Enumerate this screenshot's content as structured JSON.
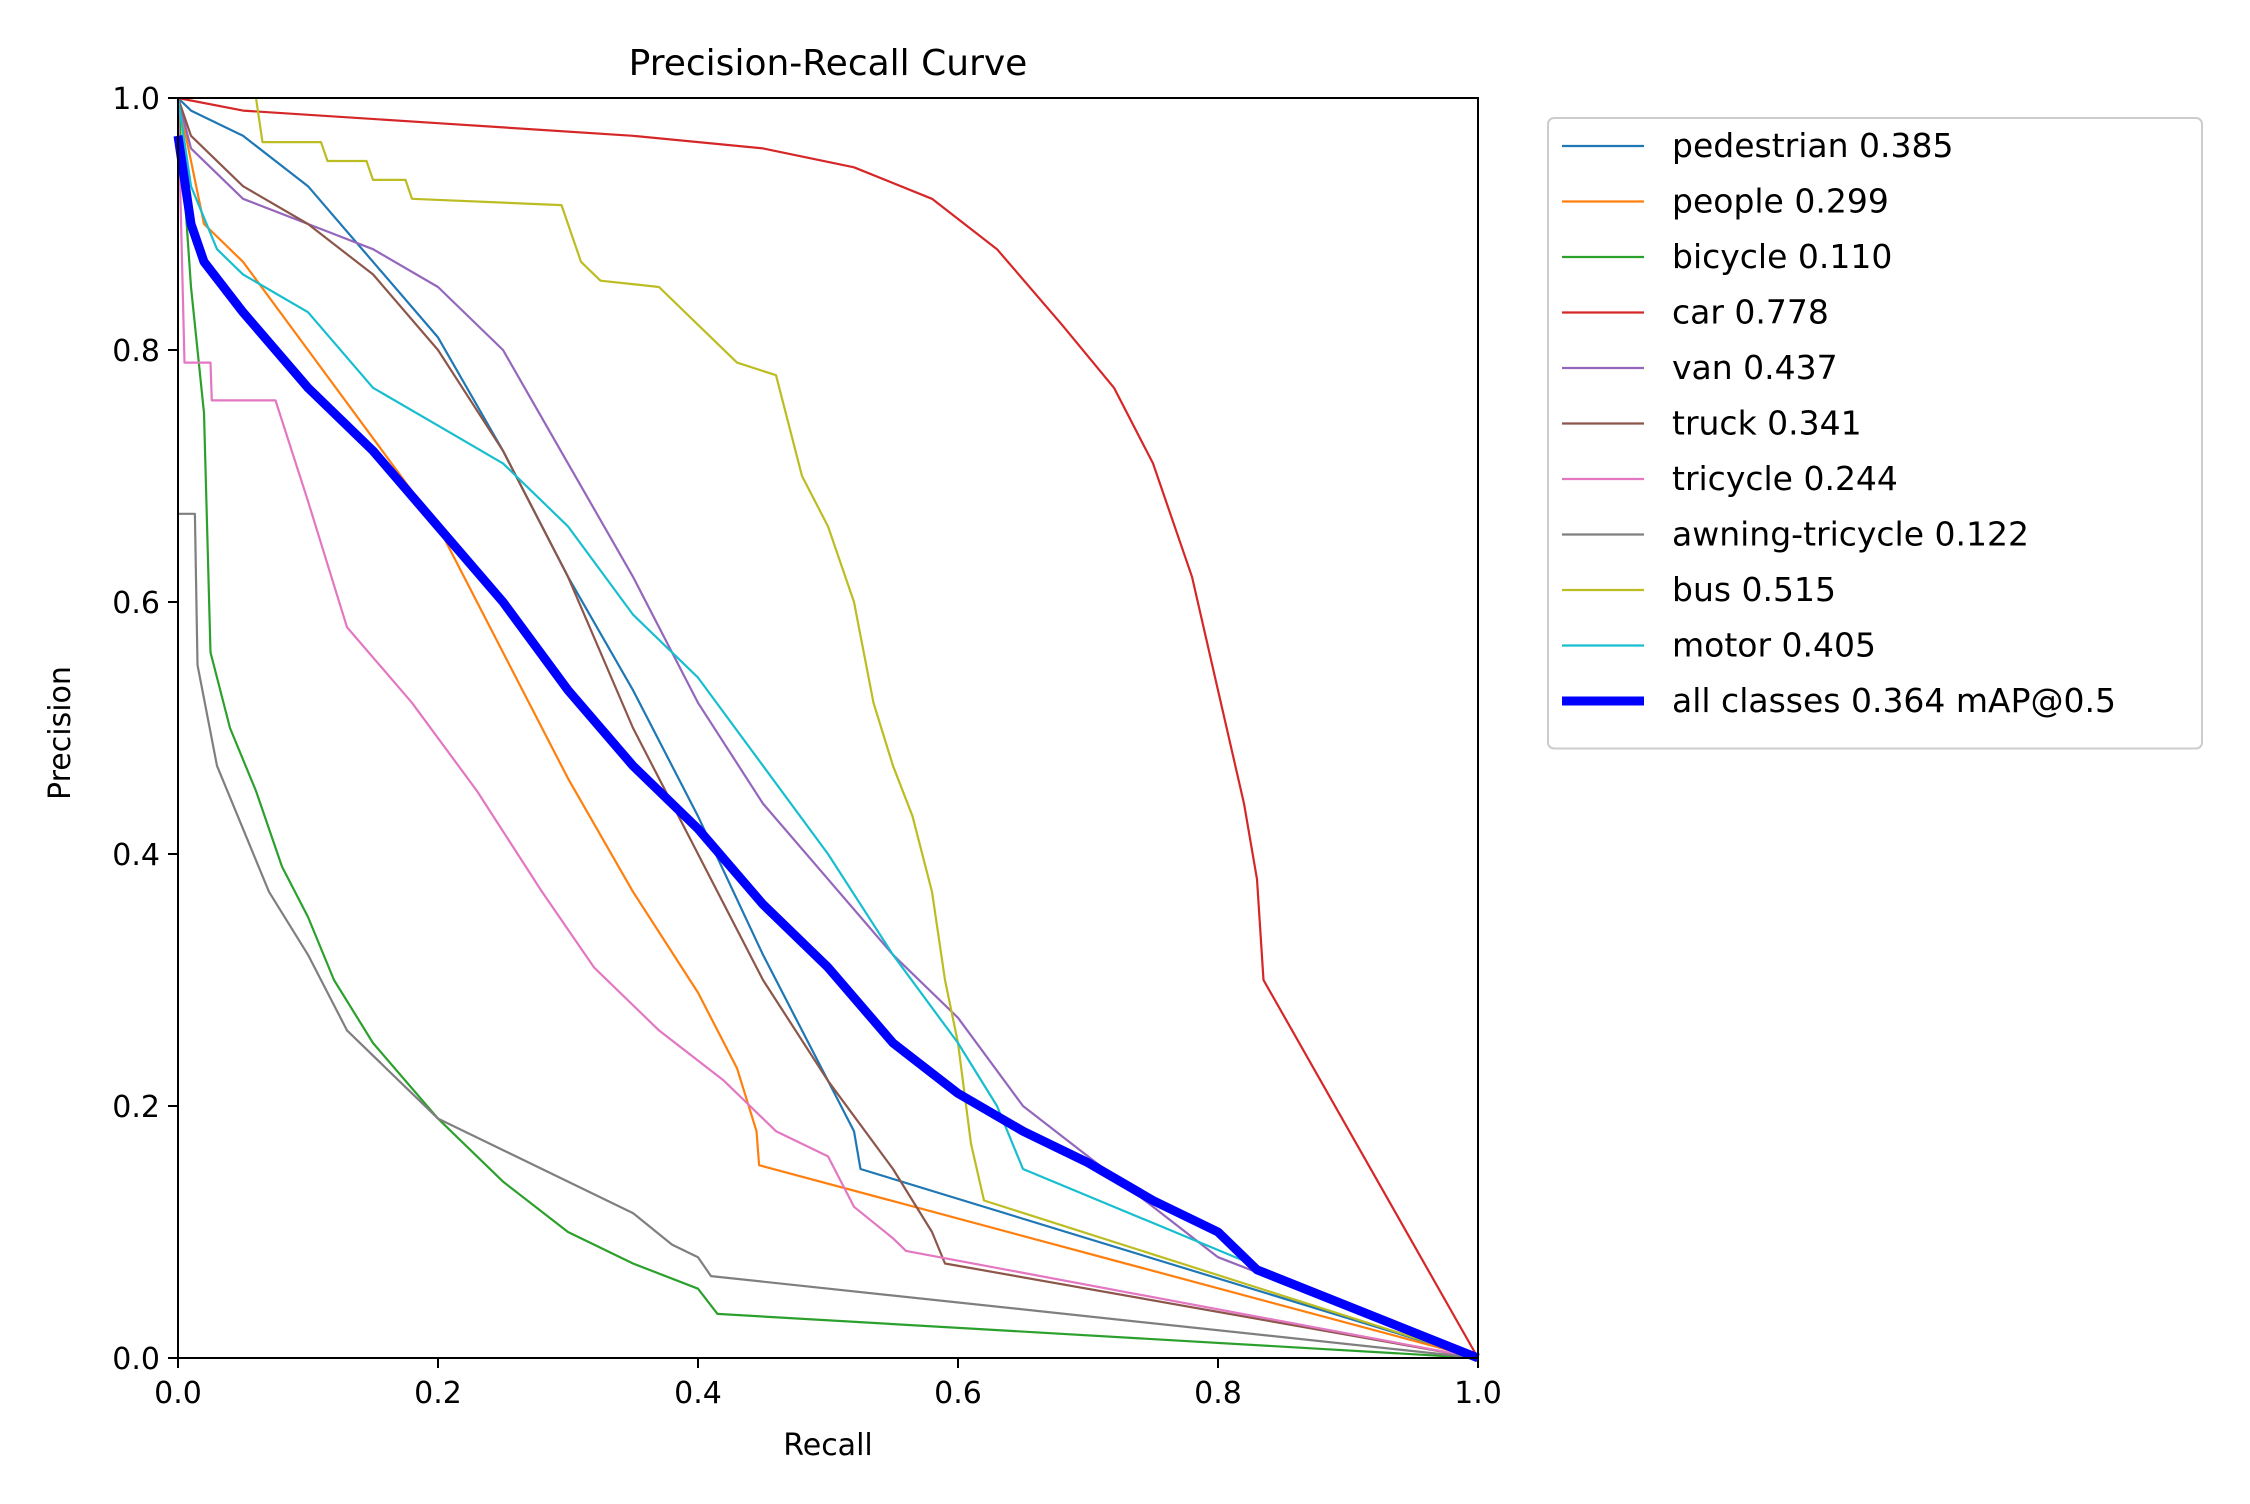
{
  "chart_data": {
    "type": "line",
    "title": "Precision-Recall Curve",
    "xlabel": "Recall",
    "ylabel": "Precision",
    "xlim": [
      0,
      1
    ],
    "ylim": [
      0,
      1
    ],
    "xticks": [
      "0.0",
      "0.2",
      "0.4",
      "0.6",
      "0.8",
      "1.0"
    ],
    "yticks": [
      "0.0",
      "0.2",
      "0.4",
      "0.6",
      "0.8",
      "1.0"
    ],
    "grid": false,
    "legend_position": "outside-right",
    "series": [
      {
        "name": "pedestrian 0.385",
        "color": "#1f77b4",
        "points": [
          [
            0,
            1.0
          ],
          [
            0.01,
            0.99
          ],
          [
            0.05,
            0.97
          ],
          [
            0.1,
            0.93
          ],
          [
            0.15,
            0.87
          ],
          [
            0.2,
            0.81
          ],
          [
            0.25,
            0.72
          ],
          [
            0.3,
            0.62
          ],
          [
            0.35,
            0.53
          ],
          [
            0.4,
            0.43
          ],
          [
            0.45,
            0.32
          ],
          [
            0.5,
            0.22
          ],
          [
            0.52,
            0.18
          ],
          [
            0.525,
            0.15
          ],
          [
            1.0,
            0.0
          ]
        ]
      },
      {
        "name": "people 0.299",
        "color": "#ff7f0e",
        "points": [
          [
            0,
            1.0
          ],
          [
            0.02,
            0.9
          ],
          [
            0.05,
            0.87
          ],
          [
            0.1,
            0.8
          ],
          [
            0.15,
            0.73
          ],
          [
            0.2,
            0.66
          ],
          [
            0.25,
            0.56
          ],
          [
            0.3,
            0.46
          ],
          [
            0.35,
            0.37
          ],
          [
            0.4,
            0.29
          ],
          [
            0.43,
            0.23
          ],
          [
            0.445,
            0.18
          ],
          [
            0.447,
            0.153
          ],
          [
            1.0,
            0.0
          ]
        ]
      },
      {
        "name": "bicycle 0.110",
        "color": "#2ca02c",
        "points": [
          [
            0,
            1.0
          ],
          [
            0.01,
            0.85
          ],
          [
            0.02,
            0.75
          ],
          [
            0.025,
            0.56
          ],
          [
            0.04,
            0.5
          ],
          [
            0.06,
            0.45
          ],
          [
            0.08,
            0.39
          ],
          [
            0.1,
            0.35
          ],
          [
            0.12,
            0.3
          ],
          [
            0.15,
            0.25
          ],
          [
            0.2,
            0.19
          ],
          [
            0.25,
            0.14
          ],
          [
            0.3,
            0.1
          ],
          [
            0.35,
            0.075
          ],
          [
            0.4,
            0.055
          ],
          [
            0.415,
            0.035
          ],
          [
            1.0,
            0.0
          ]
        ]
      },
      {
        "name": "car 0.778",
        "color": "#d62728",
        "points": [
          [
            0,
            1.0
          ],
          [
            0.05,
            0.99
          ],
          [
            0.2,
            0.98
          ],
          [
            0.35,
            0.97
          ],
          [
            0.45,
            0.96
          ],
          [
            0.52,
            0.945
          ],
          [
            0.58,
            0.92
          ],
          [
            0.63,
            0.88
          ],
          [
            0.68,
            0.82
          ],
          [
            0.72,
            0.77
          ],
          [
            0.75,
            0.71
          ],
          [
            0.78,
            0.62
          ],
          [
            0.8,
            0.53
          ],
          [
            0.82,
            0.44
          ],
          [
            0.83,
            0.38
          ],
          [
            0.835,
            0.3
          ],
          [
            1.0,
            0.0
          ]
        ]
      },
      {
        "name": "van 0.437",
        "color": "#9467bd",
        "points": [
          [
            0,
            1.0
          ],
          [
            0.01,
            0.96
          ],
          [
            0.05,
            0.92
          ],
          [
            0.1,
            0.9
          ],
          [
            0.15,
            0.88
          ],
          [
            0.2,
            0.85
          ],
          [
            0.25,
            0.8
          ],
          [
            0.3,
            0.71
          ],
          [
            0.35,
            0.62
          ],
          [
            0.4,
            0.52
          ],
          [
            0.45,
            0.44
          ],
          [
            0.5,
            0.38
          ],
          [
            0.55,
            0.32
          ],
          [
            0.6,
            0.27
          ],
          [
            0.65,
            0.2
          ],
          [
            0.7,
            0.16
          ],
          [
            0.75,
            0.12
          ],
          [
            0.8,
            0.08
          ],
          [
            1.0,
            0.0
          ]
        ]
      },
      {
        "name": "truck 0.341",
        "color": "#8c564b",
        "points": [
          [
            0,
            1.0
          ],
          [
            0.01,
            0.97
          ],
          [
            0.05,
            0.93
          ],
          [
            0.1,
            0.9
          ],
          [
            0.15,
            0.86
          ],
          [
            0.2,
            0.8
          ],
          [
            0.25,
            0.72
          ],
          [
            0.3,
            0.62
          ],
          [
            0.35,
            0.5
          ],
          [
            0.4,
            0.4
          ],
          [
            0.45,
            0.3
          ],
          [
            0.5,
            0.22
          ],
          [
            0.55,
            0.15
          ],
          [
            0.58,
            0.1
          ],
          [
            0.59,
            0.075
          ],
          [
            1.0,
            0.0
          ]
        ]
      },
      {
        "name": "tricycle 0.244",
        "color": "#e377c2",
        "points": [
          [
            0,
            1.0
          ],
          [
            0.005,
            0.79
          ],
          [
            0.025,
            0.79
          ],
          [
            0.026,
            0.76
          ],
          [
            0.075,
            0.76
          ],
          [
            0.1,
            0.68
          ],
          [
            0.13,
            0.58
          ],
          [
            0.18,
            0.52
          ],
          [
            0.23,
            0.45
          ],
          [
            0.28,
            0.37
          ],
          [
            0.32,
            0.31
          ],
          [
            0.37,
            0.26
          ],
          [
            0.42,
            0.22
          ],
          [
            0.46,
            0.18
          ],
          [
            0.5,
            0.16
          ],
          [
            0.52,
            0.12
          ],
          [
            0.55,
            0.095
          ],
          [
            0.56,
            0.085
          ],
          [
            1.0,
            0.0
          ]
        ]
      },
      {
        "name": "awning-tricycle 0.122",
        "color": "#7f7f7f",
        "points": [
          [
            0,
            0.67
          ],
          [
            0.013,
            0.67
          ],
          [
            0.015,
            0.55
          ],
          [
            0.03,
            0.47
          ],
          [
            0.05,
            0.42
          ],
          [
            0.07,
            0.37
          ],
          [
            0.1,
            0.32
          ],
          [
            0.13,
            0.26
          ],
          [
            0.17,
            0.22
          ],
          [
            0.2,
            0.19
          ],
          [
            0.25,
            0.165
          ],
          [
            0.3,
            0.14
          ],
          [
            0.35,
            0.115
          ],
          [
            0.38,
            0.09
          ],
          [
            0.4,
            0.08
          ],
          [
            0.41,
            0.065
          ],
          [
            1.0,
            0.0
          ]
        ]
      },
      {
        "name": "bus 0.515",
        "color": "#bcbd22",
        "points": [
          [
            0.06,
            1.0
          ],
          [
            0.065,
            0.965
          ],
          [
            0.11,
            0.965
          ],
          [
            0.115,
            0.95
          ],
          [
            0.145,
            0.95
          ],
          [
            0.15,
            0.935
          ],
          [
            0.175,
            0.935
          ],
          [
            0.18,
            0.92
          ],
          [
            0.295,
            0.915
          ],
          [
            0.31,
            0.87
          ],
          [
            0.325,
            0.855
          ],
          [
            0.37,
            0.85
          ],
          [
            0.4,
            0.82
          ],
          [
            0.43,
            0.79
          ],
          [
            0.46,
            0.78
          ],
          [
            0.48,
            0.7
          ],
          [
            0.5,
            0.66
          ],
          [
            0.52,
            0.6
          ],
          [
            0.535,
            0.52
          ],
          [
            0.55,
            0.47
          ],
          [
            0.565,
            0.43
          ],
          [
            0.58,
            0.37
          ],
          [
            0.59,
            0.3
          ],
          [
            0.6,
            0.25
          ],
          [
            0.61,
            0.17
          ],
          [
            0.62,
            0.125
          ],
          [
            1.0,
            0.0
          ]
        ]
      },
      {
        "name": "motor 0.405",
        "color": "#17becf",
        "points": [
          [
            0,
            1.0
          ],
          [
            0.01,
            0.93
          ],
          [
            0.03,
            0.88
          ],
          [
            0.05,
            0.86
          ],
          [
            0.1,
            0.83
          ],
          [
            0.15,
            0.77
          ],
          [
            0.2,
            0.74
          ],
          [
            0.25,
            0.71
          ],
          [
            0.3,
            0.66
          ],
          [
            0.35,
            0.59
          ],
          [
            0.4,
            0.54
          ],
          [
            0.45,
            0.47
          ],
          [
            0.5,
            0.4
          ],
          [
            0.55,
            0.32
          ],
          [
            0.6,
            0.25
          ],
          [
            0.63,
            0.2
          ],
          [
            0.65,
            0.15
          ],
          [
            1.0,
            0.0
          ]
        ]
      },
      {
        "name": "all classes 0.364 mAP@0.5",
        "color": "#0000ff",
        "points": [
          [
            0,
            0.97
          ],
          [
            0.01,
            0.9
          ],
          [
            0.02,
            0.87
          ],
          [
            0.05,
            0.83
          ],
          [
            0.1,
            0.77
          ],
          [
            0.15,
            0.72
          ],
          [
            0.2,
            0.66
          ],
          [
            0.25,
            0.6
          ],
          [
            0.3,
            0.53
          ],
          [
            0.35,
            0.47
          ],
          [
            0.4,
            0.42
          ],
          [
            0.45,
            0.36
          ],
          [
            0.5,
            0.31
          ],
          [
            0.55,
            0.25
          ],
          [
            0.6,
            0.21
          ],
          [
            0.65,
            0.18
          ],
          [
            0.7,
            0.155
          ],
          [
            0.75,
            0.125
          ],
          [
            0.8,
            0.1
          ],
          [
            0.83,
            0.07
          ],
          [
            1.0,
            0.0
          ]
        ]
      }
    ]
  }
}
